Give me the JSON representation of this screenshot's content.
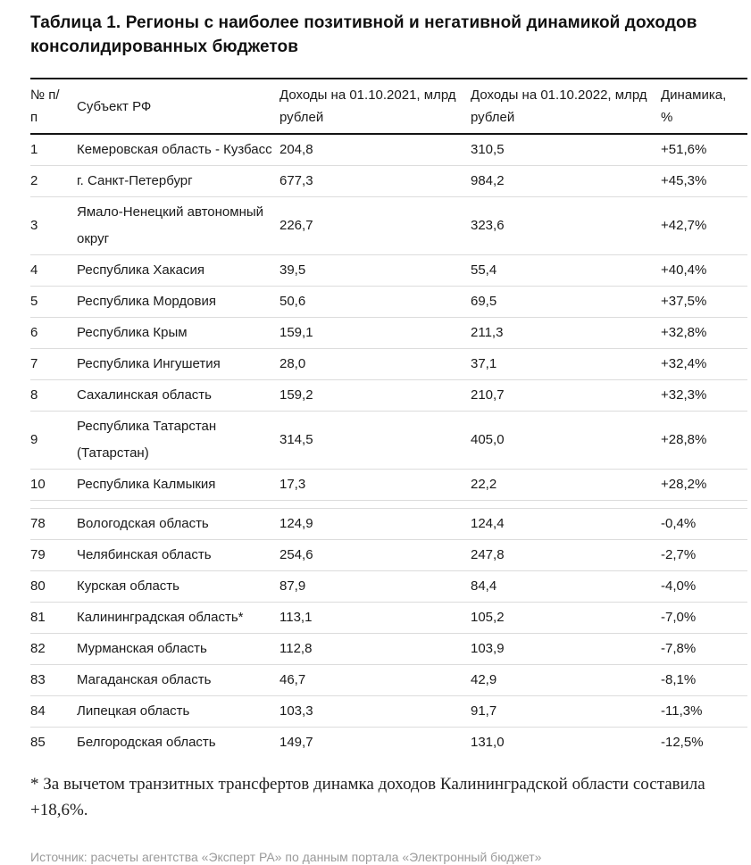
{
  "title": "Таблица 1. Регионы с наиболее позитивной и негативной динамикой доходов консолидированных бюджетов",
  "colors": {
    "text": "#1a1a1a",
    "heavy_rule": "#141414",
    "light_rule": "#dcdcdc",
    "muted_text": "#9a9a9a"
  },
  "table": {
    "columns": [
      {
        "key": "num",
        "label_lines": [
          "№ п/",
          "п"
        ]
      },
      {
        "key": "region",
        "label": "Субъект РФ"
      },
      {
        "key": "rev2021",
        "label": "Доходы на 01.10.2021, млрд рублей"
      },
      {
        "key": "rev2022",
        "label": "Доходы на 01.10.2022, млрд рублей"
      },
      {
        "key": "dyn",
        "label": "Динамика, %"
      }
    ],
    "sections": [
      {
        "name": "most-positive",
        "rows": [
          {
            "num": "1",
            "region": "Кемеровская область - Кузбасс",
            "rev2021": "204,8",
            "rev2022": "310,5",
            "dyn": "+51,6%"
          },
          {
            "num": "2",
            "region": "г. Санкт-Петербург",
            "rev2021": "677,3",
            "rev2022": "984,2",
            "dyn": "+45,3%"
          },
          {
            "num": "3",
            "region": "Ямало-Ненецкий автономный округ",
            "rev2021": "226,7",
            "rev2022": "323,6",
            "dyn": "+42,7%"
          },
          {
            "num": "4",
            "region": "Республика Хакасия",
            "rev2021": "39,5",
            "rev2022": "55,4",
            "dyn": "+40,4%"
          },
          {
            "num": "5",
            "region": "Республика Мордовия",
            "rev2021": "50,6",
            "rev2022": "69,5",
            "dyn": "+37,5%"
          },
          {
            "num": "6",
            "region": "Республика Крым",
            "rev2021": "159,1",
            "rev2022": "211,3",
            "dyn": "+32,8%"
          },
          {
            "num": "7",
            "region": "Республика Ингушетия",
            "rev2021": "28,0",
            "rev2022": "37,1",
            "dyn": "+32,4%"
          },
          {
            "num": "8",
            "region": "Сахалинская область",
            "rev2021": "159,2",
            "rev2022": "210,7",
            "dyn": "+32,3%"
          },
          {
            "num": "9",
            "region": "Республика Татарстан (Татарстан)",
            "rev2021": "314,5",
            "rev2022": "405,0",
            "dyn": "+28,8%"
          },
          {
            "num": "10",
            "region": "Республика Калмыкия",
            "rev2021": "17,3",
            "rev2022": "22,2",
            "dyn": "+28,2%"
          }
        ]
      },
      {
        "name": "most-negative",
        "rows": [
          {
            "num": "78",
            "region": "Вологодская область",
            "rev2021": "124,9",
            "rev2022": "124,4",
            "dyn": "-0,4%"
          },
          {
            "num": "79",
            "region": "Челябинская область",
            "rev2021": "254,6",
            "rev2022": "247,8",
            "dyn": "-2,7%"
          },
          {
            "num": "80",
            "region": "Курская область",
            "rev2021": "87,9",
            "rev2022": "84,4",
            "dyn": "-4,0%"
          },
          {
            "num": "81",
            "region": "Калининградская область*",
            "rev2021": "113,1",
            "rev2022": "105,2",
            "dyn": "-7,0%"
          },
          {
            "num": "82",
            "region": "Мурманская область",
            "rev2021": "112,8",
            "rev2022": "103,9",
            "dyn": "-7,8%"
          },
          {
            "num": "83",
            "region": "Магаданская область",
            "rev2021": "46,7",
            "rev2022": "42,9",
            "dyn": "-8,1%"
          },
          {
            "num": "84",
            "region": "Липецкая область",
            "rev2021": "103,3",
            "rev2022": "91,7",
            "dyn": "-11,3%"
          },
          {
            "num": "85",
            "region": "Белгородская область",
            "rev2021": "149,7",
            "rev2022": "131,0",
            "dyn": "-12,5%"
          }
        ]
      }
    ]
  },
  "footnote": "* За вычетом транзитных трансфертов динамка доходов Калининградской области составила +18,6%.",
  "source": "Источник: расчеты агентства «Эксперт РА» по данным портала «Электронный бюджет»"
}
